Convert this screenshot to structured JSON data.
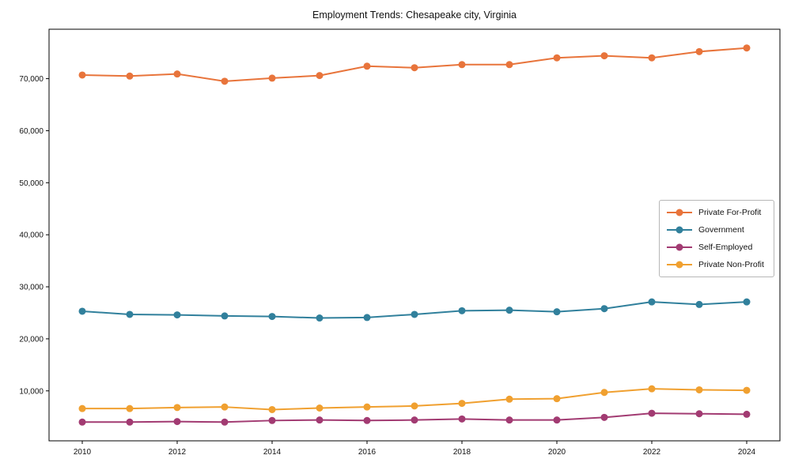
{
  "figure": {
    "background": "#ffffff",
    "spine_color": "#000000",
    "text_color": "#111111"
  },
  "chart_data": {
    "type": "line",
    "title": "Employment Trends: Chesapeake city, Virginia",
    "xlabel": "",
    "ylabel": "",
    "grid": false,
    "legend_position": "center right",
    "x": [
      2010,
      2011,
      2012,
      2013,
      2014,
      2015,
      2016,
      2017,
      2018,
      2019,
      2020,
      2021,
      2022,
      2023,
      2024
    ],
    "series": [
      {
        "name": "Private For-Profit",
        "color": "#e8743b",
        "values": [
          70700,
          70500,
          70900,
          69500,
          70100,
          70600,
          72400,
          72100,
          72700,
          72700,
          74000,
          74400,
          74000,
          75200,
          75900
        ]
      },
      {
        "name": "Government",
        "color": "#31809c",
        "values": [
          25300,
          24700,
          24600,
          24400,
          24300,
          24000,
          24100,
          24700,
          25400,
          25500,
          25200,
          25800,
          27100,
          26600,
          27100
        ]
      },
      {
        "name": "Self-Employed",
        "color": "#a23b72",
        "values": [
          4000,
          4000,
          4100,
          4000,
          4300,
          4400,
          4300,
          4400,
          4600,
          4400,
          4400,
          4900,
          5700,
          5600,
          5500
        ]
      },
      {
        "name": "Private Non-Profit",
        "color": "#f0a030",
        "values": [
          6600,
          6600,
          6800,
          6900,
          6400,
          6700,
          6900,
          7100,
          7600,
          8400,
          8500,
          9700,
          10400,
          10200,
          10100
        ]
      }
    ],
    "xlim": [
      2009.3,
      2024.7
    ],
    "ylim": [
      400,
      79500
    ],
    "xticks": [
      2010,
      2012,
      2014,
      2016,
      2018,
      2020,
      2022,
      2024
    ],
    "yticks": [
      10000,
      20000,
      30000,
      40000,
      50000,
      60000,
      70000
    ],
    "ytick_labels": [
      "10,000",
      "20,000",
      "30,000",
      "40,000",
      "50,000",
      "60,000",
      "70,000"
    ]
  }
}
